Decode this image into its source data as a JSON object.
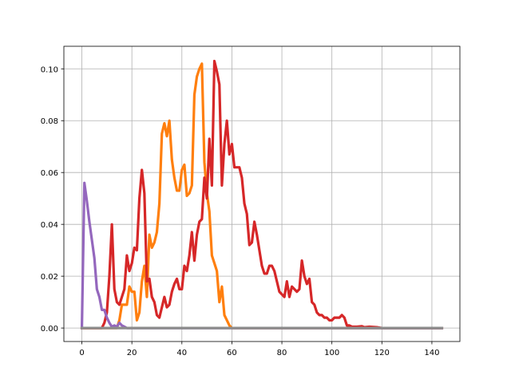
{
  "chart_data": {
    "type": "line",
    "title": "",
    "xlabel": "",
    "ylabel": "",
    "xlim": [
      -7.2,
      151.2
    ],
    "ylim": [
      -0.0052,
      0.1087
    ],
    "grid": true,
    "x_ticks": [
      0,
      20,
      40,
      60,
      80,
      100,
      120,
      140
    ],
    "y_ticks": [
      0.0,
      0.02,
      0.04,
      0.06,
      0.08,
      0.1
    ],
    "x_tick_labels": [
      "0",
      "20",
      "40",
      "60",
      "80",
      "100",
      "120",
      "140"
    ],
    "y_tick_labels": [
      "0.00",
      "0.02",
      "0.04",
      "0.06",
      "0.08",
      "0.10"
    ],
    "series": [
      {
        "color": "#ff7f0e",
        "points": [
          [
            0,
            0
          ],
          [
            12,
            0
          ],
          [
            14,
            0
          ],
          [
            15,
            0.003
          ],
          [
            16,
            0.009
          ],
          [
            18,
            0.009
          ],
          [
            19,
            0.016
          ],
          [
            20,
            0.014
          ],
          [
            21,
            0.014
          ],
          [
            22,
            0.003
          ],
          [
            23,
            0.006
          ],
          [
            24,
            0.018
          ],
          [
            25,
            0.024
          ],
          [
            26,
            0.012
          ],
          [
            27,
            0.036
          ],
          [
            28,
            0.031
          ],
          [
            29,
            0.033
          ],
          [
            30,
            0.037
          ],
          [
            31,
            0.048
          ],
          [
            32,
            0.075
          ],
          [
            33,
            0.079
          ],
          [
            34,
            0.074
          ],
          [
            35,
            0.08
          ],
          [
            36,
            0.065
          ],
          [
            37,
            0.058
          ],
          [
            38,
            0.053
          ],
          [
            39,
            0.053
          ],
          [
            40,
            0.061
          ],
          [
            41,
            0.063
          ],
          [
            42,
            0.051
          ],
          [
            43,
            0.052
          ],
          [
            44,
            0.055
          ],
          [
            45,
            0.09
          ],
          [
            46,
            0.097
          ],
          [
            47,
            0.1
          ],
          [
            48,
            0.102
          ],
          [
            49,
            0.064
          ],
          [
            50,
            0.052
          ],
          [
            51,
            0.045
          ],
          [
            52,
            0.028
          ],
          [
            53,
            0.025
          ],
          [
            54,
            0.022
          ],
          [
            55,
            0.01
          ],
          [
            56,
            0.016
          ],
          [
            57,
            0.005
          ],
          [
            58,
            0.003
          ],
          [
            59,
            0.001
          ],
          [
            60,
            0
          ],
          [
            144,
            0
          ]
        ]
      },
      {
        "color": "#d62728",
        "points": [
          [
            0,
            0
          ],
          [
            8,
            0
          ],
          [
            9,
            0.002
          ],
          [
            10,
            0.006
          ],
          [
            11,
            0.02
          ],
          [
            12,
            0.04
          ],
          [
            13,
            0.015
          ],
          [
            14,
            0.01
          ],
          [
            15,
            0.009
          ],
          [
            16,
            0.012
          ],
          [
            17,
            0.015
          ],
          [
            18,
            0.028
          ],
          [
            19,
            0.022
          ],
          [
            20,
            0.025
          ],
          [
            21,
            0.031
          ],
          [
            22,
            0.03
          ],
          [
            23,
            0.05
          ],
          [
            24,
            0.061
          ],
          [
            25,
            0.052
          ],
          [
            26,
            0.018
          ],
          [
            27,
            0.019
          ],
          [
            28,
            0.012
          ],
          [
            29,
            0.01
          ],
          [
            30,
            0.005
          ],
          [
            31,
            0.004
          ],
          [
            32,
            0.008
          ],
          [
            33,
            0.012
          ],
          [
            34,
            0.008
          ],
          [
            35,
            0.009
          ],
          [
            36,
            0.014
          ],
          [
            37,
            0.017
          ],
          [
            38,
            0.019
          ],
          [
            39,
            0.015
          ],
          [
            40,
            0.015
          ],
          [
            41,
            0.024
          ],
          [
            42,
            0.022
          ],
          [
            43,
            0.028
          ],
          [
            44,
            0.037
          ],
          [
            45,
            0.026
          ],
          [
            46,
            0.036
          ],
          [
            47,
            0.041
          ],
          [
            48,
            0.042
          ],
          [
            49,
            0.058
          ],
          [
            50,
            0.05
          ],
          [
            51,
            0.073
          ],
          [
            52,
            0.055
          ],
          [
            53,
            0.103
          ],
          [
            54,
            0.099
          ],
          [
            55,
            0.094
          ],
          [
            56,
            0.055
          ],
          [
            57,
            0.071
          ],
          [
            58,
            0.08
          ],
          [
            59,
            0.067
          ],
          [
            60,
            0.071
          ],
          [
            61,
            0.062
          ],
          [
            62,
            0.062
          ],
          [
            63,
            0.062
          ],
          [
            64,
            0.058
          ],
          [
            65,
            0.048
          ],
          [
            66,
            0.044
          ],
          [
            67,
            0.032
          ],
          [
            68,
            0.033
          ],
          [
            69,
            0.041
          ],
          [
            70,
            0.036
          ],
          [
            71,
            0.03
          ],
          [
            72,
            0.024
          ],
          [
            73,
            0.021
          ],
          [
            74,
            0.021
          ],
          [
            75,
            0.024
          ],
          [
            76,
            0.024
          ],
          [
            77,
            0.022
          ],
          [
            78,
            0.018
          ],
          [
            79,
            0.014
          ],
          [
            80,
            0.013
          ],
          [
            81,
            0.012
          ],
          [
            82,
            0.018
          ],
          [
            83,
            0.012
          ],
          [
            84,
            0.016
          ],
          [
            85,
            0.015
          ],
          [
            86,
            0.014
          ],
          [
            87,
            0.015
          ],
          [
            88,
            0.026
          ],
          [
            89,
            0.02
          ],
          [
            90,
            0.017
          ],
          [
            91,
            0.019
          ],
          [
            92,
            0.01
          ],
          [
            93,
            0.009
          ],
          [
            94,
            0.006
          ],
          [
            95,
            0.005
          ],
          [
            96,
            0.005
          ],
          [
            97,
            0.004
          ],
          [
            98,
            0.004
          ],
          [
            99,
            0.003
          ],
          [
            100,
            0.003
          ],
          [
            101,
            0.004
          ],
          [
            102,
            0.004
          ],
          [
            103,
            0.004
          ],
          [
            104,
            0.005
          ],
          [
            105,
            0.004
          ],
          [
            106,
            0.001
          ],
          [
            107,
            0.001
          ],
          [
            108,
            0.0005
          ],
          [
            110,
            0.0005
          ],
          [
            112,
            0.0007
          ],
          [
            113,
            0.0003
          ],
          [
            115,
            0.0005
          ],
          [
            118,
            0.0003
          ],
          [
            120,
            0
          ],
          [
            144,
            0
          ]
        ]
      },
      {
        "color": "#9467bd",
        "points": [
          [
            0,
            0
          ],
          [
            1,
            0.056
          ],
          [
            2,
            0.049
          ],
          [
            3,
            0.041
          ],
          [
            4,
            0.034
          ],
          [
            5,
            0.027
          ],
          [
            6,
            0.015
          ],
          [
            7,
            0.012
          ],
          [
            8,
            0.007
          ],
          [
            9,
            0.007
          ],
          [
            10,
            0.004
          ],
          [
            11,
            0.002
          ],
          [
            12,
            0.0005
          ],
          [
            13,
            0.001
          ],
          [
            14,
            0.0005
          ],
          [
            15,
            0.002
          ],
          [
            16,
            0.001
          ],
          [
            17,
            0.0005
          ],
          [
            18,
            0
          ],
          [
            144,
            0
          ]
        ]
      },
      {
        "color": "#8c8c8c",
        "points": [
          [
            0,
            0
          ],
          [
            144,
            0
          ]
        ]
      }
    ]
  }
}
